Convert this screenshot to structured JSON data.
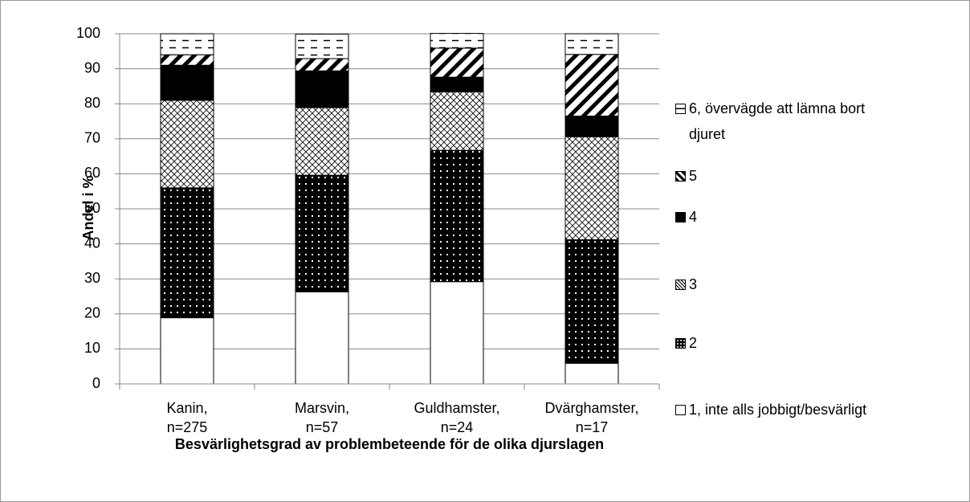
{
  "chart_data": {
    "type": "stacked-bar",
    "x_label": "Besvärlighetsgrad av problembeteende för de olika djurslagen",
    "y_label": "Andel i %",
    "categories": [
      "Kanin,\nn=275",
      "Marsvin,\nn=57",
      "Guldhamster,\nn=24",
      "Dvärghamster,\nn=17"
    ],
    "series": [
      {
        "name": "1, inte alls jobbigt/besvärligt",
        "pattern": "white",
        "values": [
          18.9,
          26.3,
          29.2,
          5.9
        ]
      },
      {
        "name": "2",
        "pattern": "dots",
        "values": [
          37.1,
          33.3,
          37.5,
          35.3
        ]
      },
      {
        "name": "3",
        "pattern": "crosshatch",
        "values": [
          25,
          19.3,
          16.7,
          29.4
        ]
      },
      {
        "name": "4",
        "pattern": "black",
        "values": [
          10,
          10.5,
          4.2,
          5.9
        ]
      },
      {
        "name": "5",
        "pattern": "diagonal",
        "values": [
          3,
          3.5,
          8.3,
          17.6
        ]
      },
      {
        "name": "6, övervägde att lämna bort djuret",
        "pattern": "dashes",
        "values": [
          6,
          7.0,
          4.2,
          5.9
        ]
      }
    ],
    "ylim": [
      0,
      100
    ],
    "yticks": [
      0,
      10,
      20,
      30,
      40,
      50,
      60,
      70,
      80,
      90,
      100
    ],
    "grid": true,
    "legend": "right"
  }
}
